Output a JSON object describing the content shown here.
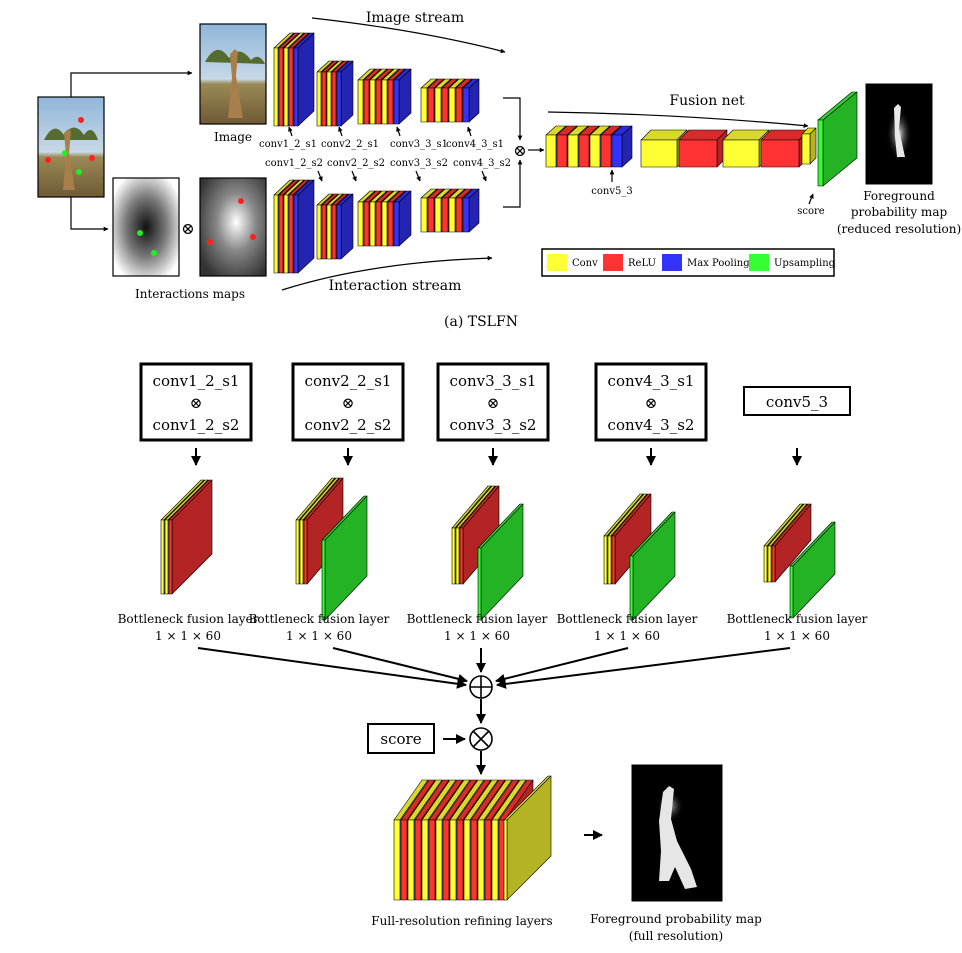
{
  "top": {
    "image_stream_label": "Image stream",
    "interaction_stream_label": "Interaction stream",
    "fusion_net_label": "Fusion net",
    "image_label": "Image",
    "interactions_maps_label": "Interactions maps",
    "s1_labels": [
      "conv1_2_s1",
      "conv2_2_s1",
      "conv3_3_s1",
      "conv4_3_s1"
    ],
    "s2_labels": [
      "conv1_2_s2",
      "conv2_2_s2",
      "conv3_3_s2",
      "conv4_3_s2"
    ],
    "conv5_label": "conv5_3",
    "score_label": "score",
    "fg_map_lines": [
      "Foreground",
      "probability map",
      "(reduced resolution)"
    ],
    "legend": [
      {
        "label": "Conv",
        "color": "#ffff33"
      },
      {
        "label": "ReLU",
        "color": "#ff3333"
      },
      {
        "label": "Max Pooling",
        "color": "#3333ff"
      },
      {
        "label": "Upsampling",
        "color": "#33ff33"
      }
    ],
    "caption": "(a)  TSLFN"
  },
  "bottom": {
    "boxes": [
      {
        "line1": "conv1_2_s1",
        "op": "⊗",
        "line2": "conv1_2_s2"
      },
      {
        "line1": "conv2_2_s1",
        "op": "⊗",
        "line2": "conv2_2_s2"
      },
      {
        "line1": "conv3_3_s1",
        "op": "⊗",
        "line2": "conv3_3_s2"
      },
      {
        "line1": "conv4_3_s1",
        "op": "⊗",
        "line2": "conv4_3_s2"
      }
    ],
    "conv5_box": "conv5_3",
    "bottleneck": {
      "name": "Bottleneck fusion layer",
      "dims": "1 × 1 × 60"
    },
    "sum_symbol": "⊕",
    "mult_symbol": "⊗",
    "score_box": "score",
    "refining_label": "Full-resolution refining layers",
    "fg_full_lines": [
      "Foreground probability map",
      "(full resolution)"
    ]
  },
  "colors": {
    "conv": "#ffff33",
    "relu": "#ff3333",
    "pool": "#3333ff",
    "upsample": "#33ff33"
  }
}
